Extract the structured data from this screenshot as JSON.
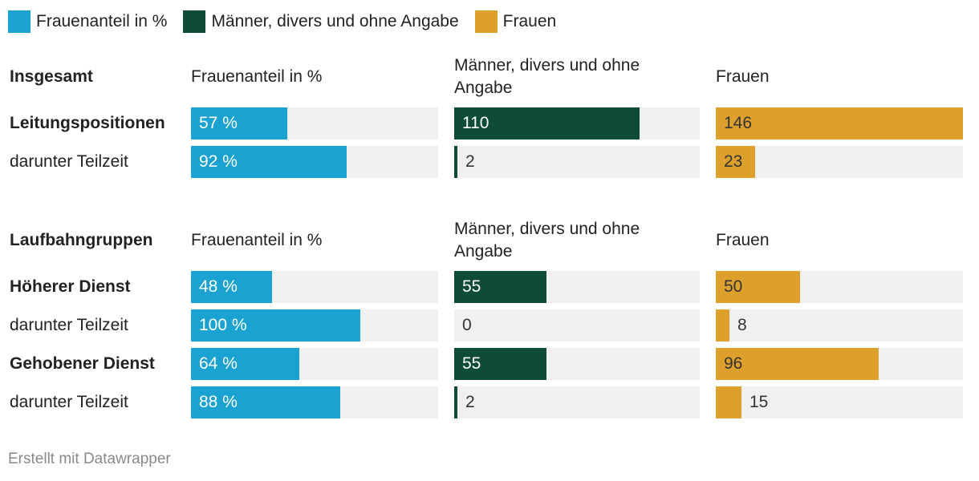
{
  "legend": [
    {
      "label": "Frauenanteil in %",
      "color": "#1aa3d1"
    },
    {
      "label": "Männer, divers und ohne Angabe",
      "color": "#0e4c38"
    },
    {
      "label": "Frauen",
      "color": "#dea02c"
    }
  ],
  "colors": {
    "blue": "#1aa3d1",
    "green": "#0e4c38",
    "orange": "#dea02c",
    "track": "#f0f0f0"
  },
  "sections": [
    {
      "title": "Insgesamt",
      "headers": [
        "Frauenanteil in %",
        "Männer, divers und ohne Angabe",
        "Frauen"
      ],
      "rows": [
        {
          "label": "Leitungspositionen",
          "bold": true,
          "share": 57,
          "share_label": "57 %",
          "men": 110,
          "men_label": "110",
          "women": 146,
          "women_label": "146"
        },
        {
          "label": "darunter Teilzeit",
          "bold": false,
          "share": 92,
          "share_label": "92 %",
          "men": 2,
          "men_label": "2",
          "women": 23,
          "women_label": "23"
        }
      ]
    },
    {
      "title": "Laufbahngruppen",
      "headers": [
        "Frauenanteil in %",
        "Männer, divers und ohne Angabe",
        "Frauen"
      ],
      "rows": [
        {
          "label": "Höherer Dienst",
          "bold": true,
          "share": 48,
          "share_label": "48 %",
          "men": 55,
          "men_label": "55",
          "women": 50,
          "women_label": "50"
        },
        {
          "label": "darunter Teilzeit",
          "bold": false,
          "share": 100,
          "share_label": "100 %",
          "men": 0,
          "men_label": "0",
          "women": 8,
          "women_label": "8"
        },
        {
          "label": "Gehobener Dienst",
          "bold": true,
          "share": 64,
          "share_label": "64 %",
          "men": 55,
          "men_label": "55",
          "women": 96,
          "women_label": "96"
        },
        {
          "label": "darunter Teilzeit",
          "bold": false,
          "share": 88,
          "share_label": "88 %",
          "men": 2,
          "men_label": "2",
          "women": 15,
          "women_label": "15"
        }
      ]
    }
  ],
  "chart_data": {
    "type": "bar",
    "title": "",
    "series": [
      {
        "name": "Frauenanteil in %",
        "domain_max": 146,
        "values": [
          57,
          92,
          48,
          100,
          64,
          88
        ]
      },
      {
        "name": "Männer, divers und ohne Angabe",
        "domain_max": 146,
        "values": [
          110,
          2,
          55,
          0,
          55,
          2
        ]
      },
      {
        "name": "Frauen",
        "domain_max": 146,
        "values": [
          146,
          23,
          50,
          8,
          96,
          15
        ]
      }
    ],
    "categories": [
      "Insgesamt – Leitungspositionen",
      "Insgesamt – darunter Teilzeit",
      "Laufbahngruppen – Höherer Dienst",
      "Laufbahngruppen – darunter Teilzeit",
      "Laufbahngruppen – Gehobener Dienst",
      "Laufbahngruppen – darunter Teilzeit"
    ]
  },
  "footer": "Erstellt mit Datawrapper"
}
